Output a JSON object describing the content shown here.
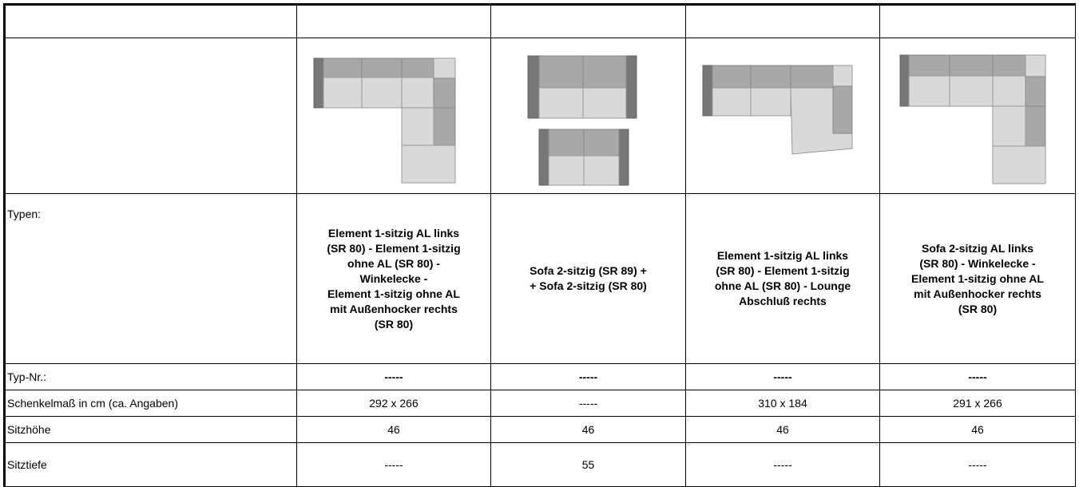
{
  "table": {
    "rows": [
      {
        "label": "Typen:",
        "cells": [
          [
            "Element 1-sitzig AL links",
            "(SR 80) - Element 1-sitzig",
            "ohne AL (SR 80) -",
            "Winkelecke -",
            "Element 1-sitzig ohne AL",
            "mit Außenhocker rechts",
            "(SR 80)"
          ],
          [
            "Sofa 2-sitzig (SR 89) +",
            "+ Sofa 2-sitzig  (SR 80)"
          ],
          [
            "Element 1-sitzig AL links",
            "(SR 80) - Element 1-sitzig",
            "ohne AL (SR 80) - Lounge",
            "Abschluß rechts"
          ],
          [
            "Sofa 2-sitzig AL links",
            "(SR 80) - Winkelecke -",
            "Element 1-sitzig ohne AL",
            "mit Außenhocker rechts",
            "(SR 80)"
          ]
        ]
      },
      {
        "label": "Typ-Nr.:",
        "cells": [
          "-----",
          "-----",
          "-----",
          "-----"
        ]
      },
      {
        "label": "Schenkelmaß in cm (ca. Angaben)",
        "cells": [
          "292 x 266",
          "-----",
          "310 x 184",
          "291 x 266"
        ]
      },
      {
        "label": "Sitzhöhe",
        "cells": [
          "46",
          "46",
          "46",
          "46"
        ]
      },
      {
        "label": "Sitztiefe",
        "cells": [
          "-----",
          "55",
          "-----",
          "-----"
        ]
      }
    ]
  }
}
